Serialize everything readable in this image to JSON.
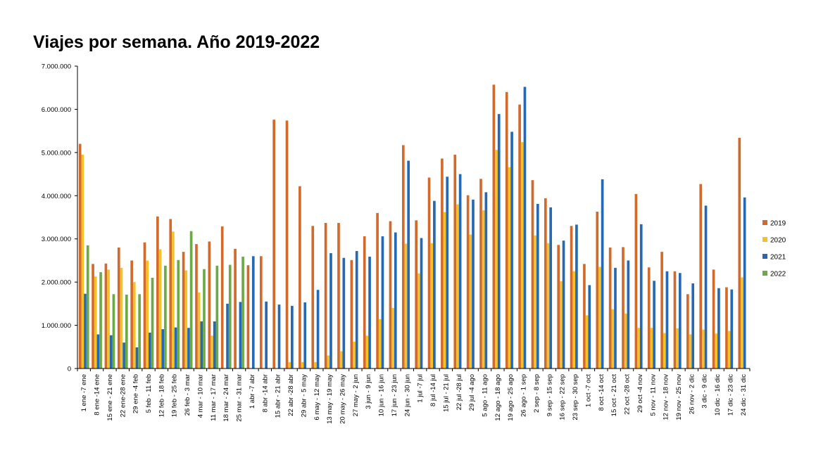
{
  "chart_data": {
    "type": "bar",
    "title": "Viajes por semana. Año 2019-2022",
    "xlabel": "",
    "ylabel": "",
    "ylim": [
      0,
      7000000
    ],
    "yticks": [
      0,
      1000000,
      2000000,
      3000000,
      4000000,
      5000000,
      6000000,
      7000000
    ],
    "ytick_labels": [
      "0",
      "1.000.000",
      "2.000.000",
      "3.000.000",
      "4.000.000",
      "5.000.000",
      "6.000.000",
      "7.000.000"
    ],
    "grid": false,
    "legend_position": "right",
    "categories": [
      "1 ene -7 ene",
      "8 ene -14 ene",
      "15 ene - 21 ene",
      "22 ene-28 ene",
      "29 ene -4 feb",
      "5 feb - 11 feb",
      "12 feb - 18 feb",
      "19 feb - 25 feb",
      "26 feb - 3 mar",
      "4 mar - 10 mar",
      "11 mar - 17 mar",
      "18 mar - 24 mar",
      "25 mar - 31 mar",
      "1 abr -7 abr",
      "8 abr -14 abr",
      "15 abr - 21 abr",
      "22 abr -28 abr",
      "29 abr - 5 may",
      "6 may - 12 may",
      "13 may - 19 may",
      "20 may - 26 may",
      "27 may - 2 jun",
      "3 jun - 9 jun",
      "10 jun - 16 jun",
      "17 jun - 23 jun",
      "24 jun - 30 jun",
      "1 jul -7 jul",
      "8 jul -14 jul",
      "15 jul - 21 jul",
      "22 jul -28 jul",
      "29 jul -4 ago",
      "5 ago - 11 ago",
      "12 ago - 18 ago",
      "19 ago - 25 ago",
      "26 ago - 1 sep",
      "2 sep - 8 sep",
      "9 sep - 15 sep",
      "16 sep - 22 sep",
      "23 sep - 30 sep",
      "1 oct -7 oct",
      "8 oct -14 oct",
      "15 oct - 21 oct",
      "22 oct -28 oct",
      "29 oct -4 nov",
      "5 nov - 11 nov",
      "12 nov - 18 nov",
      "19 nov - 25 nov",
      "26 nov - 2 dic",
      "3 dic - 9 dic",
      "10 dic - 16 dic",
      "17 dic - 23 dic",
      "24 dic - 31 dic"
    ],
    "series": [
      {
        "name": "2019",
        "color": "#D26A2C",
        "values": [
          5200000,
          2420000,
          2430000,
          2800000,
          2500000,
          2920000,
          3520000,
          3460000,
          2700000,
          2880000,
          2940000,
          3290000,
          2770000,
          2390000,
          2600000,
          5760000,
          5740000,
          4220000,
          3300000,
          3370000,
          3370000,
          2510000,
          3060000,
          3600000,
          3410000,
          5170000,
          3430000,
          4420000,
          4860000,
          4950000,
          4010000,
          4390000,
          6570000,
          6400000,
          6110000,
          4360000,
          3940000,
          2860000,
          3300000,
          2420000,
          3630000,
          2800000,
          2810000,
          4040000,
          2340000,
          2700000,
          2250000,
          1720000,
          4270000,
          2290000,
          1880000,
          5340000
        ]
      },
      {
        "name": "2020",
        "color": "#F5C12A",
        "values": [
          4950000,
          2130000,
          2290000,
          2330000,
          2000000,
          2500000,
          2760000,
          3170000,
          2270000,
          1760000,
          760000,
          0,
          0,
          0,
          0,
          0,
          150000,
          150000,
          150000,
          300000,
          400000,
          620000,
          760000,
          1140000,
          1400000,
          2890000,
          2200000,
          2900000,
          3620000,
          3800000,
          3100000,
          3660000,
          5060000,
          4660000,
          5240000,
          3080000,
          2900000,
          2020000,
          2250000,
          1230000,
          2350000,
          1370000,
          1270000,
          940000,
          940000,
          820000,
          930000,
          790000,
          900000,
          810000,
          870000,
          2110000
        ]
      },
      {
        "name": "2021",
        "color": "#2568B4",
        "values": [
          1730000,
          790000,
          770000,
          600000,
          490000,
          830000,
          910000,
          950000,
          940000,
          1090000,
          1090000,
          1500000,
          1540000,
          2600000,
          1550000,
          1480000,
          1450000,
          1530000,
          1820000,
          2670000,
          2560000,
          2720000,
          2590000,
          3060000,
          3150000,
          4810000,
          3020000,
          3880000,
          4440000,
          4500000,
          3910000,
          4080000,
          5890000,
          5480000,
          6520000,
          3810000,
          3730000,
          2960000,
          3330000,
          1930000,
          4380000,
          2330000,
          2500000,
          3340000,
          2030000,
          2250000,
          2210000,
          1970000,
          3770000,
          1860000,
          1830000,
          3960000
        ]
      },
      {
        "name": "2022",
        "color": "#6CAA45",
        "values": [
          2850000,
          2230000,
          1720000,
          1710000,
          1720000,
          2100000,
          2380000,
          2510000,
          3180000,
          2300000,
          2380000,
          2400000,
          2590000,
          null,
          null,
          null,
          null,
          null,
          null,
          null,
          null,
          null,
          null,
          null,
          null,
          null,
          null,
          null,
          null,
          null,
          null,
          null,
          null,
          null,
          null,
          null,
          null,
          null,
          null,
          null,
          null,
          null,
          null,
          null,
          null,
          null,
          null,
          null,
          null,
          null,
          null,
          null
        ]
      }
    ]
  }
}
